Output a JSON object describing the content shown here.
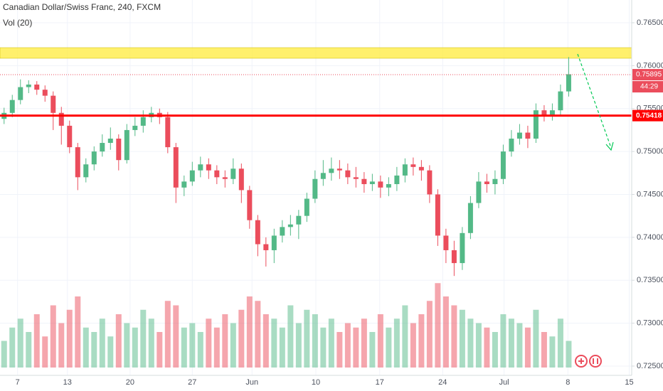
{
  "chart_data": {
    "type": "candlestick",
    "title": "Canadian Dollar/Swiss Franc, 240, FXCM",
    "volume_label": "Vol (20)",
    "up_color": "#53b987",
    "down_color": "#eb4d5c",
    "open": [
      0.7538,
      0.7545,
      0.756,
      0.7575,
      0.7578,
      0.7572,
      0.7565,
      0.7545,
      0.753,
      0.7505,
      0.747,
      0.7485,
      0.75,
      0.751,
      0.7515,
      0.749,
      0.7525,
      0.753,
      0.754,
      0.7545,
      0.754,
      0.7505,
      0.7458,
      0.7465,
      0.7478,
      0.7485,
      0.7478,
      0.747,
      0.7468,
      0.748,
      0.7455,
      0.742,
      0.7392,
      0.7385,
      0.7402,
      0.7412,
      0.7415,
      0.7425,
      0.7445,
      0.7468,
      0.7475,
      0.748,
      0.7478,
      0.747,
      0.7468,
      0.7462,
      0.7465,
      0.7458,
      0.7462,
      0.7472,
      0.7485,
      0.7482,
      0.7478,
      0.745,
      0.7402,
      0.7385,
      0.737,
      0.7405,
      0.744,
      0.7465,
      0.7462,
      0.7468,
      0.75,
      0.7515,
      0.7522,
      0.7515,
      0.7548,
      0.7542,
      0.7548,
      0.757
    ],
    "high": [
      0.7551,
      0.7566,
      0.7584,
      0.7583,
      0.7582,
      0.7577,
      0.757,
      0.7552,
      0.7536,
      0.751,
      0.7492,
      0.7506,
      0.752,
      0.7528,
      0.752,
      0.7532,
      0.754,
      0.7548,
      0.7552,
      0.755,
      0.7546,
      0.751,
      0.7472,
      0.7488,
      0.7494,
      0.7492,
      0.7484,
      0.7478,
      0.7492,
      0.7486,
      0.746,
      0.7426,
      0.74,
      0.741,
      0.742,
      0.7426,
      0.7432,
      0.7452,
      0.7478,
      0.749,
      0.7493,
      0.749,
      0.7486,
      0.7482,
      0.7476,
      0.7474,
      0.7472,
      0.747,
      0.7482,
      0.7492,
      0.7493,
      0.749,
      0.7484,
      0.7456,
      0.741,
      0.7396,
      0.7412,
      0.7448,
      0.7476,
      0.7474,
      0.7478,
      0.7508,
      0.7525,
      0.7532,
      0.753,
      0.7556,
      0.7554,
      0.7556,
      0.7578,
      0.761
    ],
    "low": [
      0.7532,
      0.754,
      0.7555,
      0.7568,
      0.7566,
      0.7558,
      0.7525,
      0.7508,
      0.7498,
      0.7455,
      0.7464,
      0.7478,
      0.7494,
      0.7502,
      0.7478,
      0.7486,
      0.7518,
      0.7522,
      0.7534,
      0.7532,
      0.7498,
      0.744,
      0.7448,
      0.746,
      0.747,
      0.7468,
      0.7462,
      0.7458,
      0.7462,
      0.744,
      0.741,
      0.7378,
      0.7366,
      0.737,
      0.7394,
      0.7402,
      0.7398,
      0.7418,
      0.744,
      0.746,
      0.7466,
      0.7468,
      0.7462,
      0.7458,
      0.7452,
      0.7454,
      0.7446,
      0.7448,
      0.7454,
      0.7464,
      0.7472,
      0.7466,
      0.744,
      0.739,
      0.737,
      0.7355,
      0.7362,
      0.7398,
      0.7434,
      0.7452,
      0.745,
      0.7462,
      0.7494,
      0.7508,
      0.7504,
      0.751,
      0.7535,
      0.7536,
      0.7542,
      0.7564
    ],
    "close": [
      0.7545,
      0.756,
      0.7575,
      0.7578,
      0.7572,
      0.7565,
      0.7545,
      0.753,
      0.7505,
      0.747,
      0.7485,
      0.75,
      0.751,
      0.7515,
      0.749,
      0.7525,
      0.753,
      0.754,
      0.7545,
      0.754,
      0.7505,
      0.7458,
      0.7465,
      0.7478,
      0.7485,
      0.7478,
      0.747,
      0.7468,
      0.748,
      0.7455,
      0.742,
      0.7392,
      0.7385,
      0.7402,
      0.7412,
      0.7415,
      0.7425,
      0.7445,
      0.7468,
      0.7475,
      0.748,
      0.7478,
      0.747,
      0.7468,
      0.7462,
      0.7465,
      0.7458,
      0.7462,
      0.7472,
      0.7485,
      0.7482,
      0.7478,
      0.745,
      0.7402,
      0.7385,
      0.737,
      0.7405,
      0.744,
      0.7465,
      0.7462,
      0.7468,
      0.75,
      0.7515,
      0.7522,
      0.7515,
      0.7548,
      0.7542,
      0.7548,
      0.757,
      0.759
    ],
    "volume": [
      30,
      45,
      55,
      40,
      60,
      35,
      70,
      50,
      65,
      80,
      45,
      40,
      55,
      35,
      60,
      50,
      45,
      65,
      55,
      40,
      75,
      70,
      45,
      50,
      40,
      55,
      45,
      60,
      50,
      65,
      80,
      75,
      60,
      55,
      45,
      70,
      50,
      65,
      60,
      45,
      55,
      40,
      50,
      45,
      55,
      40,
      60,
      45,
      55,
      70,
      50,
      60,
      75,
      95,
      80,
      70,
      65,
      55,
      50,
      45,
      40,
      60,
      55,
      50,
      45,
      65,
      40,
      35,
      55,
      30
    ],
    "volume_lim": [
      0,
      100
    ],
    "xlim": [
      -0.5,
      76.7
    ],
    "xticks": [
      {
        "value": 1.65,
        "label": "7"
      },
      {
        "value": 7.74,
        "label": "13"
      },
      {
        "value": 15.4,
        "label": "20"
      },
      {
        "value": 23.0,
        "label": "27"
      },
      {
        "value": 30.3,
        "label": "Jun"
      },
      {
        "value": 38.1,
        "label": "10"
      },
      {
        "value": 45.9,
        "label": "17"
      },
      {
        "value": 53.6,
        "label": "24"
      },
      {
        "value": 61.1,
        "label": "Jul"
      },
      {
        "value": 68.9,
        "label": "8"
      },
      {
        "value": 76.4,
        "label": "15"
      }
    ],
    "ylim": [
      0.72392,
      0.76765
    ],
    "yticks": [
      {
        "value": 0.725,
        "label": "0.72500"
      },
      {
        "value": 0.73,
        "label": "0.73000"
      },
      {
        "value": 0.735,
        "label": "0.73500"
      },
      {
        "value": 0.74,
        "label": "0.74000"
      },
      {
        "value": 0.745,
        "label": "0.74500"
      },
      {
        "value": 0.75,
        "label": "0.75000"
      },
      {
        "value": 0.755,
        "label": "0.75500"
      },
      {
        "value": 0.76,
        "label": "0.76000"
      },
      {
        "value": 0.765,
        "label": "0.76500"
      }
    ],
    "grid": true,
    "zone": {
      "from": 0.76086,
      "to": 0.7621,
      "color": "#ffeb3b"
    },
    "level_line": {
      "value": 0.75418,
      "label": "0.75418",
      "color": "#ff0000"
    },
    "price_line": {
      "value": 0.75895,
      "label": "0.75895",
      "countdown": "44:29",
      "color": "#eb4d5c"
    }
  }
}
